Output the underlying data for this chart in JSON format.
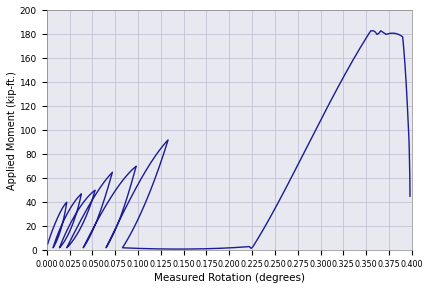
{
  "xlabel": "Measured Rotation (degrees)",
  "ylabel": "Applied Moment (kip-ft.)",
  "xlim": [
    0.0,
    0.4
  ],
  "ylim": [
    0,
    200
  ],
  "xticks": [
    0.0,
    0.025,
    0.05,
    0.075,
    0.1,
    0.125,
    0.15,
    0.175,
    0.2,
    0.225,
    0.25,
    0.275,
    0.3,
    0.325,
    0.35,
    0.375,
    0.4
  ],
  "yticks": [
    0,
    20,
    40,
    60,
    80,
    100,
    120,
    140,
    160,
    180,
    200
  ],
  "line_color": "#1c1c96",
  "line_width": 1.0,
  "grid_color": "#bbbbcc",
  "bg_color": "#e8e8f0",
  "axes_bg": "#e8e8f0"
}
